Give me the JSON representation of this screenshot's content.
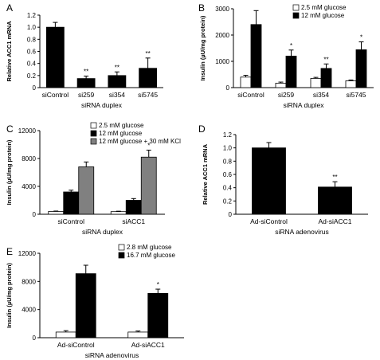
{
  "chart_data": [
    {
      "panel_label": "A",
      "type": "bar",
      "categories": [
        "siControl",
        "si259",
        "si354",
        "si5745"
      ],
      "series": [
        {
          "values": [
            1.0,
            0.15,
            0.2,
            0.32
          ],
          "errors": [
            0.08,
            0.04,
            0.06,
            0.17
          ],
          "color": "#000000"
        }
      ],
      "significance": [
        "",
        "**",
        "**",
        "**"
      ],
      "xlabel": "siRNA duplex",
      "ylabel": "Relative ACC1 mRNA",
      "ylim": [
        0,
        1.2
      ],
      "yticks": [
        "0",
        "0.2",
        "0.4",
        "0.6",
        "0.8",
        "1.0",
        "1.2"
      ],
      "ytick_values": [
        0,
        0.2,
        0.4,
        0.6,
        0.8,
        1.0,
        1.2
      ],
      "legend": "none"
    },
    {
      "panel_label": "B",
      "type": "bar",
      "categories": [
        "siControl",
        "si259",
        "si354",
        "si5745"
      ],
      "series": [
        {
          "name": "2.5 mM glucose",
          "values": [
            400,
            170,
            350,
            260
          ],
          "errors": [
            70,
            40,
            40,
            30
          ],
          "color": "#ffffff"
        },
        {
          "name": "12 mM glucose",
          "values": [
            2400,
            1200,
            730,
            1440
          ],
          "errors": [
            530,
            230,
            170,
            300
          ],
          "color": "#000000"
        }
      ],
      "significance": [
        "",
        "*",
        "**",
        "*"
      ],
      "xlabel": "siRNA duplex",
      "ylabel": "Insulin (µU/mg protein)",
      "ylim": [
        0,
        3000
      ],
      "yticks": [
        "0",
        "1000",
        "2000",
        "3000"
      ],
      "ytick_values": [
        0,
        1000,
        2000,
        3000
      ],
      "legend": "top-right"
    },
    {
      "panel_label": "C",
      "type": "bar",
      "categories": [
        "siControl",
        "siACC1"
      ],
      "series": [
        {
          "name": "2.5 mM glucose",
          "values": [
            400,
            380
          ],
          "errors": [
            60,
            60
          ],
          "color": "#ffffff"
        },
        {
          "name": "12 mM glucose",
          "values": [
            3200,
            2000
          ],
          "errors": [
            250,
            250
          ],
          "color": "#000000"
        },
        {
          "name": "12 mM glucose + 30 mM KCl",
          "values": [
            6800,
            8200
          ],
          "errors": [
            700,
            1000
          ],
          "color": "#808080"
        }
      ],
      "significance": [
        "",
        "*"
      ],
      "xlabel": "siRNA duplex",
      "ylabel": "Insulin (µU/mg protein)",
      "ylim": [
        0,
        12000
      ],
      "yticks": [
        "0",
        "4000",
        "8000",
        "12000"
      ],
      "ytick_values": [
        0,
        4000,
        8000,
        12000
      ],
      "legend": "top-right"
    },
    {
      "panel_label": "D",
      "type": "bar",
      "categories": [
        "Ad-siControl",
        "Ad-siACC1"
      ],
      "series": [
        {
          "values": [
            1.0,
            0.41
          ],
          "errors": [
            0.08,
            0.08
          ],
          "color": "#000000"
        }
      ],
      "significance": [
        "",
        "**"
      ],
      "xlabel": "siRNA adenovirus",
      "ylabel": "Relative ACC1 mRNA",
      "ylim": [
        0,
        1.2
      ],
      "yticks": [
        "0",
        "0.2",
        "0.4",
        "0.6",
        "0.8",
        "1.0",
        "1.2"
      ],
      "ytick_values": [
        0,
        0.2,
        0.4,
        0.6,
        0.8,
        1.0,
        1.2
      ],
      "legend": "none"
    },
    {
      "panel_label": "E",
      "type": "bar",
      "categories": [
        "Ad-siControl",
        "Ad-siACC1"
      ],
      "series": [
        {
          "name": "2.8 mM glucose",
          "values": [
            800,
            800
          ],
          "errors": [
            200,
            150
          ],
          "color": "#ffffff"
        },
        {
          "name": "16.7 mM glucose",
          "values": [
            9100,
            6300
          ],
          "errors": [
            1200,
            600
          ],
          "color": "#000000"
        }
      ],
      "significance": [
        "",
        "*"
      ],
      "xlabel": "siRNA adenovirus",
      "ylabel": "Insulin (µU/mg protein)",
      "ylim": [
        0,
        12000
      ],
      "yticks": [
        "0",
        "4000",
        "8000",
        "12000"
      ],
      "ytick_values": [
        0,
        4000,
        8000,
        12000
      ],
      "legend": "top-right"
    }
  ]
}
